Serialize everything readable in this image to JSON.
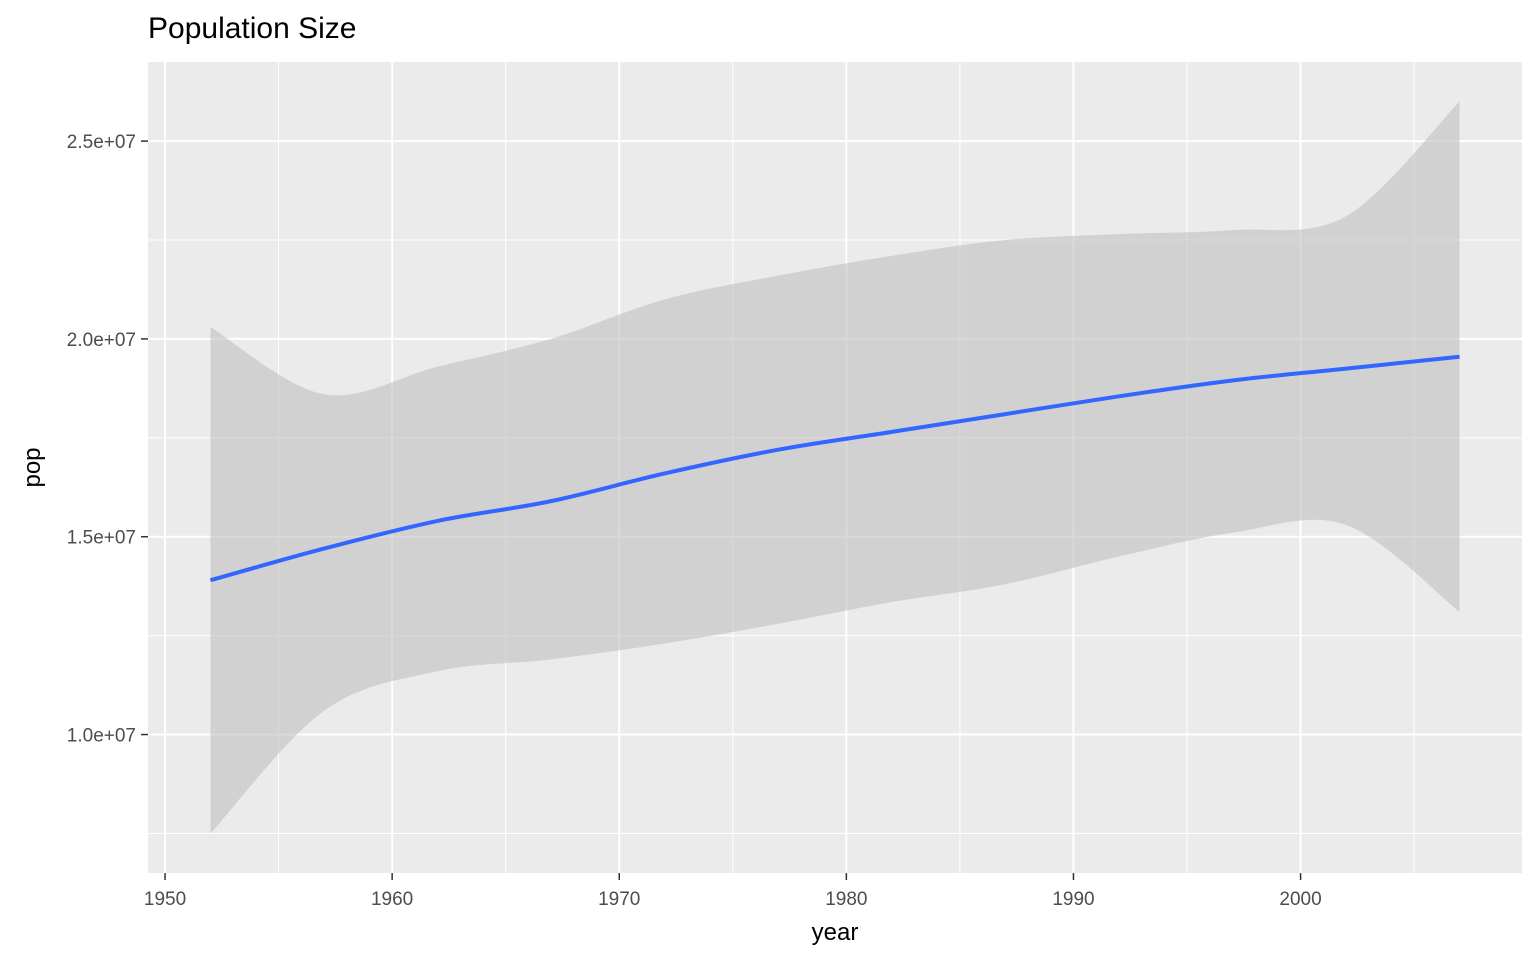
{
  "chart_data": {
    "type": "line",
    "title": "Population Size",
    "xlabel": "year",
    "ylabel": "pop",
    "xlim": [
      1949.25,
      2009.75
    ],
    "ylim": [
      6500000,
      27000000
    ],
    "x_ticks": [
      1950,
      1960,
      1970,
      1980,
      1990,
      2000
    ],
    "x_tick_labels": [
      "1950",
      "1960",
      "1970",
      "1980",
      "1990",
      "2000"
    ],
    "y_ticks": [
      10000000,
      15000000,
      20000000,
      25000000
    ],
    "y_tick_labels": [
      "1.0e+07",
      "1.5e+07",
      "2.0e+07",
      "2.5e+07"
    ],
    "grid": true,
    "legend": "none",
    "series": [
      {
        "kind": "smooth",
        "x": [
          1952,
          1957,
          1962,
          1967,
          1972,
          1977,
          1982,
          1987,
          1992,
          1997,
          2002,
          2007
        ],
        "y": [
          13900000,
          14700000,
          15400000,
          15900000,
          16600000,
          17200000,
          17650000,
          18100000,
          18550000,
          18950000,
          19250000,
          19550000
        ],
        "ci_lower": [
          7500000,
          10600000,
          11600000,
          11900000,
          12300000,
          12800000,
          13350000,
          13800000,
          14500000,
          15100000,
          15300000,
          13100000
        ],
        "ci_upper": [
          20300000,
          18600000,
          19300000,
          20000000,
          21000000,
          21600000,
          22100000,
          22500000,
          22650000,
          22750000,
          23100000,
          26000000
        ]
      }
    ],
    "colors": {
      "line": "#3366FF",
      "ribbon": "#BFBFBF",
      "panel": "#EBEBEB",
      "grid": "#FFFFFF"
    }
  }
}
